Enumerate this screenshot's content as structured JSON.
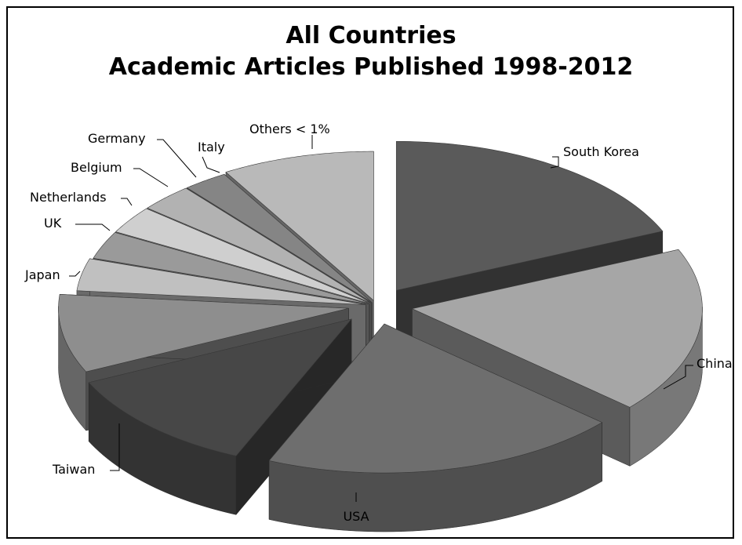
{
  "chart_data": {
    "type": "pie",
    "title_lines": [
      "All Countries",
      "Academic Articles Published 1998-2012"
    ],
    "categories": [
      "South Korea",
      "China",
      "USA",
      "Taiwan",
      "Japan",
      "UK",
      "Netherlands",
      "Belgium",
      "Germany",
      "Italy",
      "Others < 1%"
    ],
    "values": [
      18.5,
      18.0,
      20.0,
      11.5,
      8.5,
      3.5,
      3.0,
      3.0,
      3.0,
      2.5,
      8.5
    ],
    "unit": "%",
    "style": "3d-exploded",
    "legend": "none",
    "data_labels": "category-name-outside"
  },
  "colors": {
    "slices": [
      "#5a5a5a",
      "#a6a6a6",
      "#6e6e6e",
      "#474747",
      "#8e8e8e",
      "#c0c0c0",
      "#9a9a9a",
      "#cfcfcf",
      "#b2b2b2",
      "#858585",
      "#b9b9b9"
    ],
    "background": "#ffffff",
    "border": "#000000"
  }
}
